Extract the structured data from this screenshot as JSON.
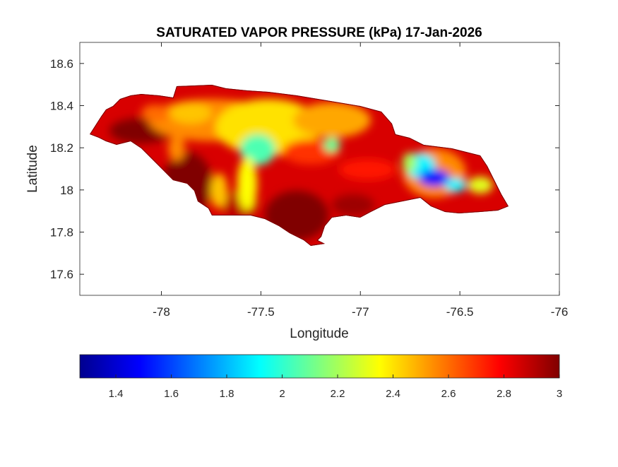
{
  "chart_data": {
    "type": "heatmap",
    "subtype": "filled contour map",
    "title": "SATURATED VAPOR PRESSURE (kPa) 17-Jan-2026",
    "xlabel": "Longitude",
    "ylabel": "Latitude",
    "xlim": [
      -78.41,
      -76
    ],
    "ylim": [
      17.5,
      18.7
    ],
    "xticks": [
      -78,
      -77.5,
      -77,
      -76.5,
      -76
    ],
    "xtick_labels": [
      "-78",
      "-77.5",
      "-77",
      "-76.5",
      "-76"
    ],
    "yticks": [
      17.6,
      17.8,
      18,
      18.2,
      18.4,
      18.6
    ],
    "ytick_labels": [
      "17.6",
      "17.8",
      "18",
      "18.2",
      "18.4",
      "18.6"
    ],
    "grid": false,
    "colormap": "jet",
    "colorbar": {
      "location": "bottom",
      "clim": [
        1.27,
        3
      ],
      "ticks": [
        1.4,
        1.6,
        1.8,
        2,
        2.2,
        2.4,
        2.6,
        2.8,
        3
      ],
      "tick_labels": [
        "1.4",
        "1.6",
        "1.8",
        "2",
        "2.2",
        "2.4",
        "2.6",
        "2.8",
        "3"
      ]
    },
    "value_range_on_map": [
      1.4,
      3
    ],
    "notes_visible": "Lowest values (blue) in eastern mountains near -76.6, 18.05; highest (dark red) along southern and western lowlands"
  }
}
